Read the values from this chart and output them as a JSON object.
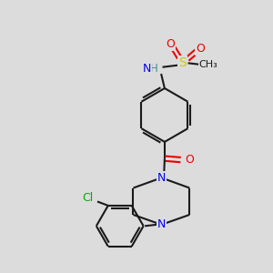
{
  "background_color": "#dcdcdc",
  "bond_color": "#1a1a1a",
  "atom_colors": {
    "N": "#0000ee",
    "O": "#ee0000",
    "S": "#cccc00",
    "Cl": "#00aa00",
    "H": "#4a8a8a",
    "C": "#1a1a1a"
  },
  "figsize": [
    3.0,
    3.0
  ],
  "dpi": 100
}
